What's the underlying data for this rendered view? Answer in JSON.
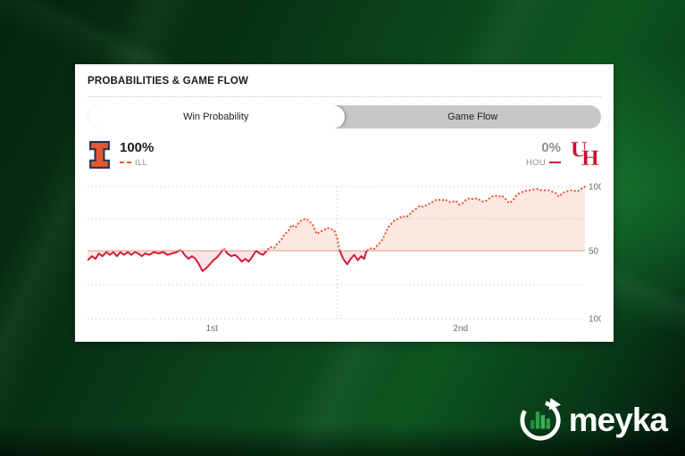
{
  "card": {
    "header_title": "PROBABILITIES & GAME FLOW",
    "tabs": [
      {
        "label": "Win Probability",
        "active": true
      },
      {
        "label": "Game Flow",
        "active": false
      }
    ],
    "matchup": {
      "home": {
        "abbr": "ILL",
        "win_pct": "100%",
        "color": "#e8552e"
      },
      "away": {
        "abbr": "HOU",
        "win_pct": "0%",
        "color": "#cf1e3c"
      }
    },
    "icons": {
      "home_logo": "illinois-block-i",
      "away_logo": "houston-interlocking-uh"
    }
  },
  "chart_data": {
    "type": "area",
    "title": "Win Probability",
    "note": "ILL win probability across game time; orange dotted above 50 favors ILL, red solid below 50 favors HOU",
    "x": {
      "range": [
        0,
        100
      ],
      "tick_labels": [
        "1st",
        "2nd"
      ],
      "tick_positions": [
        25,
        75
      ],
      "halftime_divider": 50.2
    },
    "y": {
      "range": [
        0,
        100
      ],
      "ticks": [
        {
          "value": 100,
          "label": "100"
        },
        {
          "value": 50,
          "label": "50"
        },
        {
          "value": 0,
          "label": "100"
        }
      ],
      "gridlines": [
        100,
        75,
        25,
        0
      ]
    },
    "series": [
      {
        "name": "ILL win probability",
        "points": [
          [
            0,
            43
          ],
          [
            0.9,
            46
          ],
          [
            1.6,
            44
          ],
          [
            2.3,
            48
          ],
          [
            3,
            46
          ],
          [
            3.8,
            49
          ],
          [
            4.5,
            47
          ],
          [
            5.2,
            49
          ],
          [
            5.9,
            46
          ],
          [
            6.6,
            49
          ],
          [
            7.3,
            47
          ],
          [
            8.1,
            49
          ],
          [
            8.8,
            47
          ],
          [
            9.5,
            49
          ],
          [
            10.2,
            48
          ],
          [
            10.9,
            46
          ],
          [
            11.6,
            48
          ],
          [
            12.4,
            47
          ],
          [
            13.4,
            49
          ],
          [
            14.3,
            48
          ],
          [
            15.2,
            49
          ],
          [
            16.1,
            47
          ],
          [
            17,
            48
          ],
          [
            17.9,
            49
          ],
          [
            18.8,
            51
          ],
          [
            19.5,
            47
          ],
          [
            20.3,
            44
          ],
          [
            21,
            46
          ],
          [
            21.7,
            44
          ],
          [
            22.4,
            40
          ],
          [
            23.1,
            35
          ],
          [
            23.8,
            37
          ],
          [
            24.6,
            40
          ],
          [
            25.3,
            43
          ],
          [
            26,
            45
          ],
          [
            26.7,
            48
          ],
          [
            27.4,
            52
          ],
          [
            28.1,
            48
          ],
          [
            28.9,
            46
          ],
          [
            29.6,
            47
          ],
          [
            30.3,
            45
          ],
          [
            31,
            42
          ],
          [
            31.7,
            44
          ],
          [
            32.4,
            42
          ],
          [
            33.2,
            46
          ],
          [
            33.9,
            50
          ],
          [
            34.6,
            48
          ],
          [
            35.3,
            47
          ],
          [
            36,
            50
          ],
          [
            36.7,
            53
          ],
          [
            37.5,
            52
          ],
          [
            38.2,
            56
          ],
          [
            38.9,
            58
          ],
          [
            39.6,
            63
          ],
          [
            40.3,
            65
          ],
          [
            41,
            70
          ],
          [
            41.8,
            68
          ],
          [
            42.5,
            72
          ],
          [
            43.2,
            74
          ],
          [
            43.9,
            75
          ],
          [
            44.6,
            73
          ],
          [
            45.3,
            70
          ],
          [
            46.1,
            63
          ],
          [
            46.8,
            65
          ],
          [
            47.5,
            66
          ],
          [
            48.2,
            68
          ],
          [
            48.9,
            67
          ],
          [
            49.6,
            66
          ],
          [
            50.2,
            60
          ],
          [
            50.7,
            50
          ],
          [
            51.4,
            44
          ],
          [
            52.2,
            40
          ],
          [
            52.9,
            44
          ],
          [
            53.6,
            47
          ],
          [
            54.3,
            43
          ],
          [
            55,
            46
          ],
          [
            55.6,
            44
          ],
          [
            56.1,
            50
          ],
          [
            56.8,
            52
          ],
          [
            57.5,
            51
          ],
          [
            58.2,
            54
          ],
          [
            59,
            57
          ],
          [
            59.7,
            62
          ],
          [
            60.4,
            68
          ],
          [
            61.1,
            71
          ],
          [
            61.8,
            74
          ],
          [
            62.5,
            75
          ],
          [
            63.3,
            77
          ],
          [
            64,
            76
          ],
          [
            64.7,
            78
          ],
          [
            65.4,
            81
          ],
          [
            66.1,
            83
          ],
          [
            66.8,
            85
          ],
          [
            67.6,
            84
          ],
          [
            68.3,
            86
          ],
          [
            69,
            87
          ],
          [
            69.7,
            89
          ],
          [
            70.4,
            90
          ],
          [
            71.1,
            89
          ],
          [
            71.9,
            90
          ],
          [
            72.6,
            88
          ],
          [
            73.3,
            88
          ],
          [
            74,
            89
          ],
          [
            74.7,
            86
          ],
          [
            75.4,
            87
          ],
          [
            76.2,
            90
          ],
          [
            76.9,
            91
          ],
          [
            77.6,
            90
          ],
          [
            78.3,
            91
          ],
          [
            79,
            89
          ],
          [
            79.7,
            88
          ],
          [
            80.5,
            90
          ],
          [
            81.2,
            92
          ],
          [
            81.9,
            93
          ],
          [
            82.6,
            92
          ],
          [
            83.3,
            93
          ],
          [
            84.1,
            90
          ],
          [
            84.8,
            87
          ],
          [
            85.5,
            89
          ],
          [
            86.2,
            93
          ],
          [
            86.9,
            95
          ],
          [
            87.6,
            96
          ],
          [
            88.4,
            97
          ],
          [
            89.1,
            97
          ],
          [
            89.8,
            98
          ],
          [
            90.5,
            98
          ],
          [
            91.2,
            97
          ],
          [
            91.9,
            97
          ],
          [
            92.7,
            97
          ],
          [
            93.4,
            96
          ],
          [
            94.1,
            95
          ],
          [
            94.8,
            92
          ],
          [
            95.5,
            95
          ],
          [
            96.2,
            96
          ],
          [
            97,
            97
          ],
          [
            97.7,
            97
          ],
          [
            98.4,
            96
          ],
          [
            99.1,
            98
          ],
          [
            99.8,
            99
          ],
          [
            100,
            100
          ]
        ]
      }
    ],
    "styles": {
      "above_color": "#e8552e",
      "below_color": "#cf1e3c",
      "above_fill": "rgba(232,85,46,0.14)",
      "below_fill": "rgba(200,16,46,0.11)",
      "baseline_color": "#eec2af",
      "grid_color": "#cfcfcf",
      "label_color": "#6b6b6b"
    }
  },
  "watermark": {
    "brand": "meyka",
    "brand_color": "#2ea04a",
    "icon": "circular-arrow-with-bar-chart"
  }
}
